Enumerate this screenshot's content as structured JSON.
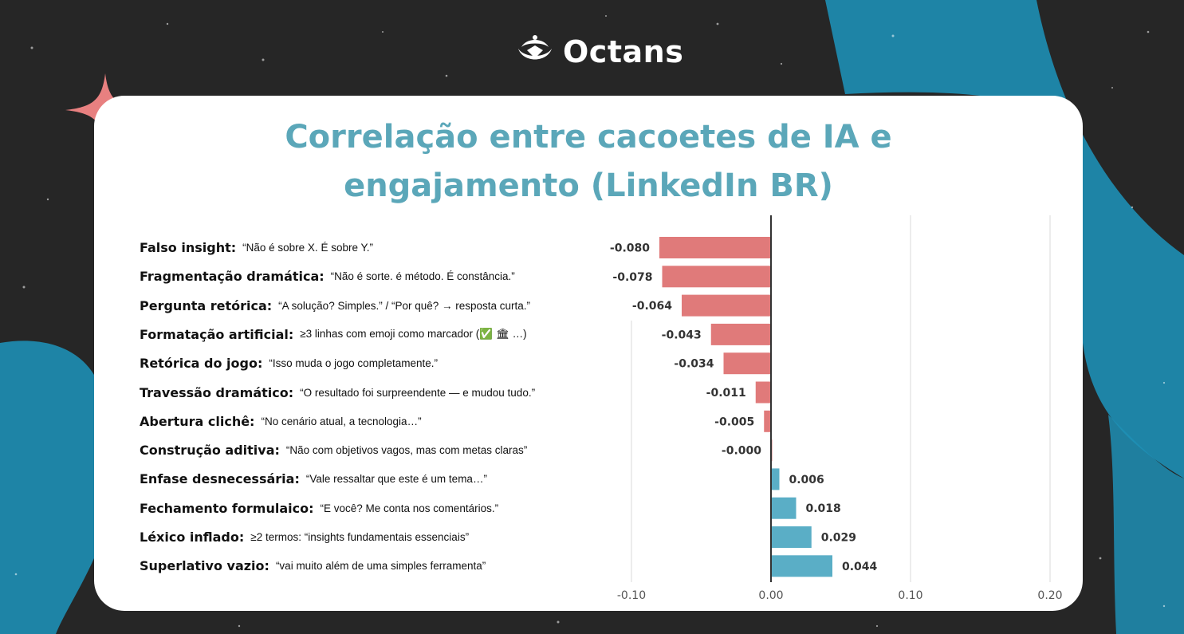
{
  "brand": {
    "name": "Octans",
    "logo_icon": "octans-logo-icon"
  },
  "colors": {
    "negative": "#e07a7a",
    "positive": "#5aaec6",
    "title": "#5ba7b9",
    "accent_star": "#e88080",
    "background_blue": "#1e8fb5"
  },
  "chart_data": {
    "type": "bar",
    "orientation": "horizontal",
    "title": "Correlação entre cacoetes de IA e engajamento (LinkedIn BR)",
    "title_lines": [
      "Correlação entre cacoetes de IA e",
      "engajamento (LinkedIn BR)"
    ],
    "categories": [
      {
        "name": "Falso insight:",
        "example": "“Não é sobre X. É sobre Y.”"
      },
      {
        "name": "Fragmentação dramática:",
        "example": "“Não é sorte. é método. É constância.”"
      },
      {
        "name": "Pergunta retórica:",
        "example": "“A solução? Simples.” / “Por quê? → resposta curta.”"
      },
      {
        "name": "Formatação artificial:",
        "example": "≥3 linhas com emoji como marcador (✅ 🏛 …)"
      },
      {
        "name": "Retórica do jogo:",
        "example": "“Isso muda o jogo completamente.”"
      },
      {
        "name": "Travessão dramático:",
        "example": "“O resultado foi surpreendente — e mudou tudo.”"
      },
      {
        "name": "Abertura clichê:",
        "example": "“No cenário atual, a tecnologia…”"
      },
      {
        "name": "Construção aditiva:",
        "example": "“Não com objetivos vagos, mas com metas claras”"
      },
      {
        "name": "Enfase desnecessária:",
        "example": "“Vale ressaltar que este é um tema…”"
      },
      {
        "name": "Fechamento formulaico:",
        "example": "“E você? Me conta nos comentários.”"
      },
      {
        "name": "Léxico inflado:",
        "example": "≥2 termos: “insights fundamentais essenciais”"
      },
      {
        "name": "Superlativo vazio:",
        "example": "“vai muito além de uma simples ferramenta”"
      }
    ],
    "values": [
      -0.08,
      -0.078,
      -0.064,
      -0.043,
      -0.034,
      -0.011,
      -0.005,
      -0.0,
      0.006,
      0.018,
      0.029,
      0.044
    ],
    "value_labels": [
      "-0.080",
      "-0.078",
      "-0.064",
      "-0.043",
      "-0.034",
      "-0.011",
      "-0.005",
      "-0.000",
      "0.006",
      "0.018",
      "0.029",
      "0.044"
    ],
    "xlim": [
      -0.1,
      0.2
    ],
    "x_ticks": [
      "-0.10",
      "0.00",
      "0.10",
      "0.20"
    ],
    "x_tick_values": [
      -0.1,
      0.0,
      0.1,
      0.2
    ],
    "grid": "vertical",
    "xlabel": "",
    "ylabel": ""
  }
}
